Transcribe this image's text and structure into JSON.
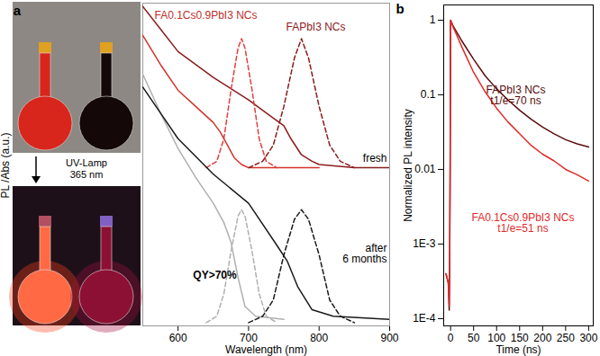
{
  "chart_data": [
    {
      "type": "line",
      "panel_label": "a",
      "x_label": "Wavelength (nm)",
      "y_label": "PL /Abs (a.u.)",
      "xlim": [
        550,
        900
      ],
      "xticks": [
        600,
        700,
        800,
        900
      ],
      "ylim": [
        0,
        10
      ],
      "tick_labels": "x",
      "grid": false,
      "annotations": [
        "FA0.1Cs0.9PbI3 NCs",
        "FAPbI3 NCs",
        "QY>70%",
        "fresh",
        "after\n6 months",
        "UV-Lamp\n365 nm"
      ],
      "series": [
        {
          "color": "#d2332b",
          "line_style": "solid",
          "x": [
            550,
            575,
            600,
            625,
            650,
            660,
            670,
            680,
            690,
            700,
            750,
            800
          ],
          "values": [
            9.0,
            8.1,
            7.3,
            6.8,
            6.3,
            6.0,
            5.6,
            5.2,
            5.0,
            4.9,
            4.9,
            4.9
          ]
        },
        {
          "color": "#8b1c1c",
          "line_style": "solid",
          "x": [
            550,
            575,
            600,
            650,
            700,
            725,
            750,
            760,
            775,
            790,
            800,
            850,
            900
          ],
          "values": [
            9.9,
            9.2,
            8.5,
            7.7,
            7.0,
            6.6,
            6.2,
            5.8,
            5.3,
            5.1,
            5.0,
            4.9,
            4.9
          ]
        },
        {
          "color": "#e04040",
          "line_style": "dashed",
          "x": [
            640,
            655,
            665,
            675,
            685,
            690,
            695,
            705,
            715,
            725,
            740
          ],
          "values": [
            4.9,
            5.1,
            5.8,
            7.3,
            8.6,
            8.9,
            8.6,
            7.3,
            5.8,
            5.1,
            4.9
          ]
        },
        {
          "color": "#8b1c1c",
          "line_style": "dashed",
          "x": [
            700,
            720,
            735,
            750,
            765,
            775,
            785,
            800,
            815,
            830,
            850
          ],
          "values": [
            4.9,
            5.1,
            5.6,
            6.8,
            8.3,
            8.9,
            8.3,
            6.8,
            5.6,
            5.1,
            4.9
          ]
        },
        {
          "color": "#b0b0b0",
          "line_style": "solid",
          "x": [
            550,
            575,
            600,
            625,
            650,
            665,
            675,
            685,
            695,
            710,
            750
          ],
          "values": [
            7.8,
            6.6,
            5.5,
            4.6,
            3.8,
            3.2,
            2.6,
            1.5,
            0.6,
            0.3,
            0.2
          ]
        },
        {
          "color": "#1a1a1a",
          "line_style": "solid",
          "x": [
            550,
            575,
            600,
            650,
            700,
            740,
            755,
            770,
            790,
            820,
            900
          ],
          "values": [
            7.4,
            6.6,
            5.8,
            4.7,
            3.8,
            2.5,
            2.0,
            1.2,
            0.5,
            0.3,
            0.2
          ]
        },
        {
          "color": "#b0b0b0",
          "line_style": "dashed",
          "x": [
            640,
            655,
            665,
            675,
            685,
            690,
            695,
            705,
            715,
            725,
            740
          ],
          "values": [
            0.1,
            0.3,
            1.0,
            2.3,
            3.4,
            3.6,
            3.4,
            2.3,
            1.0,
            0.3,
            0.1
          ]
        },
        {
          "color": "#1a1a1a",
          "line_style": "dashed",
          "x": [
            700,
            720,
            735,
            750,
            765,
            775,
            785,
            800,
            815,
            830,
            850
          ],
          "values": [
            0.1,
            0.3,
            0.8,
            2.2,
            3.3,
            3.6,
            3.3,
            2.2,
            0.8,
            0.3,
            0.1
          ]
        }
      ]
    },
    {
      "type": "line",
      "panel_label": "b",
      "x_label": "Time (ns)",
      "y_label": "Normalized PL intensity",
      "log": "y",
      "grid": false,
      "xlim": [
        -15,
        310
      ],
      "xticks": [
        0,
        50,
        100,
        150,
        200,
        250,
        300
      ],
      "ylim": [
        8e-05,
        1.6
      ],
      "yticks": [
        {
          "value": 0.0001,
          "label": "1E-4"
        },
        {
          "value": 0.001,
          "label": "1E-3"
        },
        0.01,
        0.1,
        1
      ],
      "annotations": [
        "t1/e=70 ns",
        "t1/e=51 ns"
      ],
      "series": [
        {
          "name": "FAPbI3 NCs",
          "color": "#5a0d0d",
          "line_style": "solid",
          "x": [
            -10,
            -5,
            -3,
            -2,
            -1,
            0,
            5,
            10,
            25,
            50,
            75,
            100,
            125,
            150,
            175,
            200,
            225,
            250,
            275,
            300
          ],
          "values": [
            0.0004,
            0.0003,
            0.00013,
            0.0005,
            0.01,
            1,
            0.85,
            0.75,
            0.52,
            0.3,
            0.18,
            0.12,
            0.085,
            0.062,
            0.047,
            0.037,
            0.03,
            0.025,
            0.022,
            0.02
          ]
        },
        {
          "name": "FA0.1Cs0.9PbI3 NCs",
          "color": "#e02a2a",
          "line_style": "solid",
          "x": [
            -10,
            -5,
            -3,
            -2,
            -1,
            0,
            5,
            10,
            25,
            50,
            75,
            100,
            125,
            150,
            175,
            200,
            225,
            250,
            275,
            300
          ],
          "values": [
            0.0004,
            0.0003,
            0.00015,
            0.0006,
            0.012,
            1,
            0.82,
            0.7,
            0.43,
            0.2,
            0.11,
            0.066,
            0.043,
            0.03,
            0.021,
            0.016,
            0.013,
            0.01,
            0.0085,
            0.007
          ]
        }
      ]
    }
  ]
}
